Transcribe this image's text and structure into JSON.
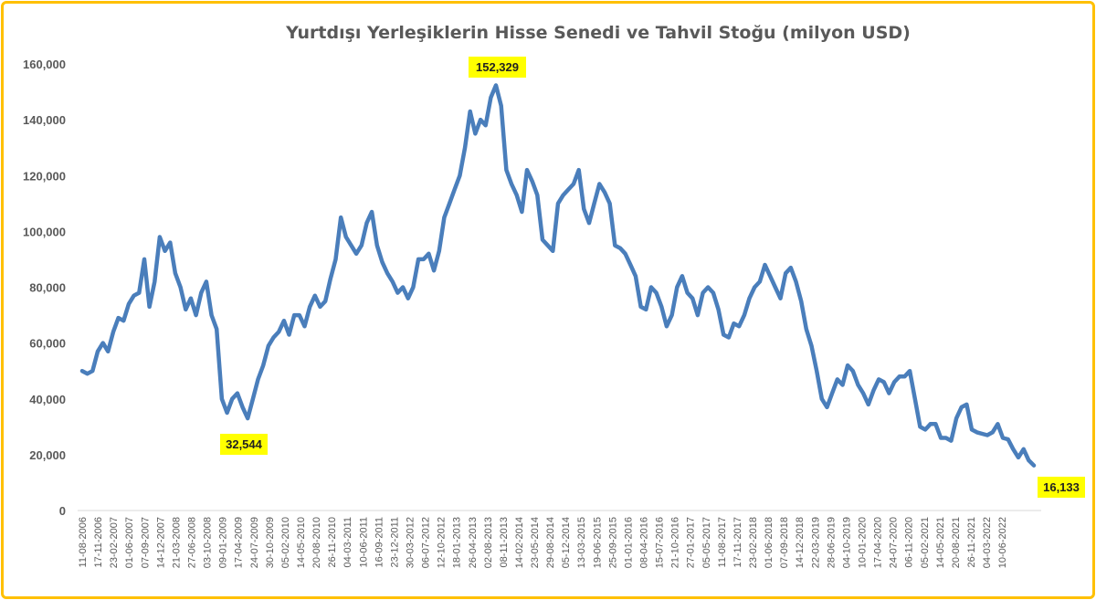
{
  "chart_data": {
    "type": "line",
    "title": "Yurtdışı Yerleşiklerin Hisse Senedi ve Tahvil Stoğu (milyon USD)",
    "xlabel": "",
    "ylabel": "",
    "ylim": [
      0,
      160000
    ],
    "yticks": [
      "0",
      "20,000",
      "40,000",
      "60,000",
      "80,000",
      "100,000",
      "120,000",
      "140,000",
      "160,000"
    ],
    "ytick_values": [
      0,
      20000,
      40000,
      60000,
      80000,
      100000,
      120000,
      140000,
      160000
    ],
    "grid": false,
    "x_tick_labels": [
      "11-08-2006",
      "17-11-2006",
      "23-02-2007",
      "01-06-2007",
      "07-09-2007",
      "14-12-2007",
      "21-03-2008",
      "27-06-2008",
      "03-10-2008",
      "09-01-2009",
      "17-04-2009",
      "24-07-2009",
      "30-10-2009",
      "05-02-2010",
      "14-05-2010",
      "20-08-2010",
      "26-11-2010",
      "04-03-2011",
      "10-06-2011",
      "16-09-2011",
      "23-12-2011",
      "30-03-2012",
      "06-07-2012",
      "12-10-2012",
      "18-01-2013",
      "26-04-2013",
      "02-08-2013",
      "08-11-2013",
      "14-02-2014",
      "23-05-2014",
      "29-08-2014",
      "05-12-2014",
      "13-03-2015",
      "19-06-2015",
      "25-09-2015",
      "01-01-2016",
      "08-04-2016",
      "15-07-2016",
      "21-10-2016",
      "27-01-2017",
      "05-05-2017",
      "11-08-2017",
      "17-11-2017",
      "23-02-2018",
      "01-06-2018",
      "07-09-2018",
      "14-12-2018",
      "22-03-2019",
      "28-06-2019",
      "04-10-2019",
      "10-01-2020",
      "17-04-2020",
      "24-07-2020",
      "06-11-2020",
      "05-02-2021",
      "14-05-2021",
      "20-08-2021",
      "26-11-2021",
      "04-03-2022",
      "10-06-2022"
    ],
    "series": [
      {
        "name": "Hisse Senedi ve Tahvil Stoğu",
        "color": "#4A7EBB",
        "values": [
          50000,
          49000,
          50000,
          57000,
          60000,
          57000,
          64000,
          69000,
          68000,
          74000,
          77000,
          78000,
          90000,
          73000,
          82000,
          98000,
          93000,
          96000,
          85000,
          80000,
          72000,
          76000,
          70000,
          78000,
          82000,
          70000,
          65000,
          40000,
          35000,
          40000,
          42000,
          37000,
          33000,
          40000,
          47000,
          52000,
          59000,
          62000,
          64000,
          68000,
          63000,
          70000,
          70000,
          66000,
          73000,
          77000,
          73000,
          75000,
          83000,
          90000,
          105000,
          98000,
          95000,
          92000,
          95000,
          103000,
          107000,
          95000,
          89000,
          85000,
          82000,
          78000,
          80000,
          76000,
          80000,
          90000,
          90000,
          92000,
          86000,
          93000,
          105000,
          110000,
          115000,
          120000,
          130000,
          143000,
          135000,
          140000,
          138000,
          148000,
          152329,
          145000,
          122000,
          117000,
          113000,
          107000,
          122000,
          118000,
          113000,
          97000,
          95000,
          93000,
          110000,
          113000,
          115000,
          117000,
          122000,
          108000,
          103000,
          110000,
          117000,
          114000,
          110000,
          95000,
          94000,
          92000,
          88000,
          84000,
          73000,
          72000,
          80000,
          78000,
          73000,
          66000,
          70000,
          80000,
          84000,
          78000,
          76000,
          70000,
          78000,
          80000,
          78000,
          72000,
          63000,
          62000,
          67000,
          66000,
          70000,
          76000,
          80000,
          82000,
          88000,
          84000,
          80000,
          76000,
          85000,
          87000,
          82000,
          75000,
          65000,
          59000,
          50000,
          40000,
          37000,
          42000,
          47000,
          45000,
          52000,
          50000,
          45000,
          42000,
          38000,
          43000,
          47000,
          46000,
          42000,
          46000,
          48000,
          48000,
          50000,
          40000,
          30000,
          29000,
          31000,
          31000,
          26000,
          26000,
          25000,
          33000,
          37000,
          38000,
          29000,
          28000,
          27500,
          27000,
          28000,
          31000,
          26000,
          25500,
          22000,
          19000,
          22000,
          18000,
          16133
        ]
      }
    ],
    "annotations": [
      {
        "label": "152,329",
        "value": 152329,
        "near": "26-04-2013"
      },
      {
        "label": "32,544",
        "value": 32544,
        "near": "09-01-2009"
      },
      {
        "label": "16,133",
        "value": 16133,
        "near": "10-06-2022"
      }
    ],
    "annotation_color": "#FFFF00"
  }
}
